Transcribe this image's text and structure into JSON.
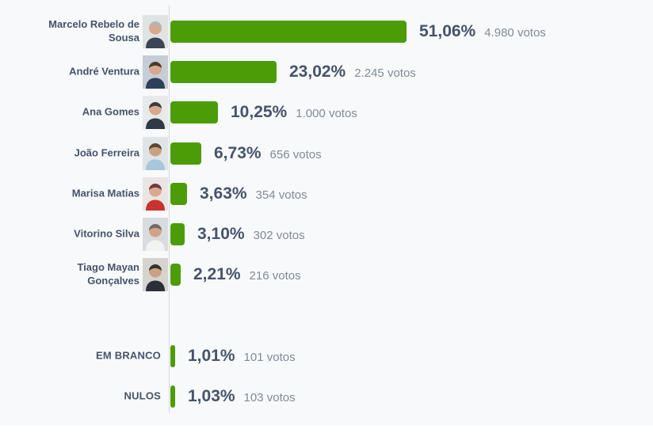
{
  "chart_data": {
    "type": "bar",
    "orientation": "horizontal",
    "title": "",
    "value_unit": "%",
    "bar_color": "#4c9c08",
    "background_color": "#f8f9fb",
    "axis_color": "#d4d8dc",
    "text_color": "#44546a",
    "votes_text_color": "#808b96",
    "x_range": [
      0,
      51.06
    ],
    "categories": [
      "Marcelo Rebelo de Sousa",
      "André Ventura",
      "Ana Gomes",
      "João Ferreira",
      "Marisa Matias",
      "Vitorino Silva",
      "Tiago Mayan Gonçalves",
      "EM BRANCO",
      "NULOS"
    ],
    "series": [
      {
        "name": "percent",
        "values": [
          51.06,
          23.02,
          10.25,
          6.73,
          3.63,
          3.1,
          2.21,
          1.01,
          1.03
        ]
      },
      {
        "name": "votes",
        "values": [
          4980,
          2245,
          1000,
          656,
          354,
          302,
          216,
          101,
          103
        ]
      }
    ],
    "rows": [
      {
        "name": "Marcelo Rebelo de Sousa",
        "percent": 51.06,
        "percent_label": "51,06%",
        "votes": 4980,
        "votes_label": "4.980 votos",
        "group": "candidate",
        "has_photo": true,
        "avatar": {
          "bg": "#dfe3e2",
          "hair": "#b4b6b5",
          "skin": "#d8a98e",
          "top": "#3a4555"
        }
      },
      {
        "name": "André Ventura",
        "percent": 23.02,
        "percent_label": "23,02%",
        "votes": 2245,
        "votes_label": "2.245 votos",
        "group": "candidate",
        "has_photo": true,
        "avatar": {
          "bg": "#c6cdd4",
          "hair": "#4a3a2e",
          "skin": "#d8a98e",
          "top": "#2e3f5c"
        }
      },
      {
        "name": "Ana Gomes",
        "percent": 10.25,
        "percent_label": "10,25%",
        "votes": 1000,
        "votes_label": "1.000 votos",
        "group": "candidate",
        "has_photo": true,
        "avatar": {
          "bg": "#e8e9ea",
          "hair": "#3c3a3c",
          "skin": "#d8a98e",
          "top": "#2f3a46"
        }
      },
      {
        "name": "João Ferreira",
        "percent": 6.73,
        "percent_label": "6,73%",
        "votes": 656,
        "votes_label": "656 votos",
        "group": "candidate",
        "has_photo": true,
        "avatar": {
          "bg": "#dfe4e6",
          "hair": "#5a4632",
          "skin": "#caa183",
          "top": "#a8c6dc"
        }
      },
      {
        "name": "Marisa Matias",
        "percent": 3.63,
        "percent_label": "3,63%",
        "votes": 354,
        "votes_label": "354 votos",
        "group": "candidate",
        "has_photo": true,
        "avatar": {
          "bg": "#e9e5e2",
          "hair": "#6e3a3c",
          "skin": "#d8a98e",
          "top": "#c8332e"
        }
      },
      {
        "name": "Vitorino Silva",
        "percent": 3.1,
        "percent_label": "3,10%",
        "votes": 302,
        "votes_label": "302 votos",
        "group": "candidate",
        "has_photo": true,
        "avatar": {
          "bg": "#d8dcdf",
          "hair": "#6f6a66",
          "skin": "#d2a287",
          "top": "#f2f2f0"
        }
      },
      {
        "name": "Tiago Mayan Gonçalves",
        "percent": 2.21,
        "percent_label": "2,21%",
        "votes": 216,
        "votes_label": "216 votos",
        "group": "candidate",
        "has_photo": true,
        "avatar": {
          "bg": "#d7d3cf",
          "hair": "#33302c",
          "skin": "#caa183",
          "top": "#2b2f38"
        }
      },
      {
        "name": "EM BRANCO",
        "percent": 1.01,
        "percent_label": "1,01%",
        "votes": 101,
        "votes_label": "101 votos",
        "group": "special",
        "has_photo": false
      },
      {
        "name": "NULOS",
        "percent": 1.03,
        "percent_label": "1,03%",
        "votes": 103,
        "votes_label": "103 votos",
        "group": "special",
        "has_photo": false
      }
    ]
  }
}
